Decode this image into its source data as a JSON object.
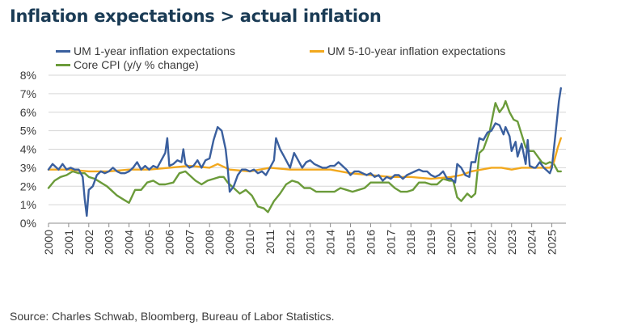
{
  "chart_data": {
    "type": "line",
    "title": "Inflation expectations > actual inflation",
    "xlabel": "",
    "ylabel": "",
    "xlim": [
      2000,
      2025.7
    ],
    "ylim": [
      0,
      8
    ],
    "y_ticks": [
      "0%",
      "1%",
      "2%",
      "3%",
      "4%",
      "5%",
      "6%",
      "7%",
      "8%"
    ],
    "x_ticks": [
      "2000",
      "2001",
      "2002",
      "2003",
      "2004",
      "2005",
      "2006",
      "2007",
      "2008",
      "2009",
      "2010",
      "2011",
      "2012",
      "2013",
      "2014",
      "2015",
      "2016",
      "2017",
      "2018",
      "2019",
      "2020",
      "2021",
      "2022",
      "2023",
      "2024",
      "2025"
    ],
    "grid": true,
    "legend_position": "top",
    "series": [
      {
        "name": "UM 1-year inflation expectations",
        "color": "#3a5f9e",
        "points": [
          [
            2000.0,
            2.9
          ],
          [
            2000.2,
            3.2
          ],
          [
            2000.5,
            2.9
          ],
          [
            2000.7,
            3.2
          ],
          [
            2000.9,
            2.9
          ],
          [
            2001.1,
            3.0
          ],
          [
            2001.3,
            2.9
          ],
          [
            2001.5,
            2.9
          ],
          [
            2001.7,
            2.5
          ],
          [
            2001.8,
            1.3
          ],
          [
            2001.9,
            0.4
          ],
          [
            2002.0,
            1.8
          ],
          [
            2002.2,
            2.0
          ],
          [
            2002.4,
            2.6
          ],
          [
            2002.6,
            2.8
          ],
          [
            2002.8,
            2.7
          ],
          [
            2003.0,
            2.8
          ],
          [
            2003.2,
            3.0
          ],
          [
            2003.4,
            2.8
          ],
          [
            2003.6,
            2.7
          ],
          [
            2003.8,
            2.7
          ],
          [
            2004.0,
            2.8
          ],
          [
            2004.2,
            3.0
          ],
          [
            2004.4,
            3.3
          ],
          [
            2004.6,
            2.9
          ],
          [
            2004.8,
            3.1
          ],
          [
            2005.0,
            2.9
          ],
          [
            2005.2,
            3.1
          ],
          [
            2005.4,
            3.0
          ],
          [
            2005.6,
            3.4
          ],
          [
            2005.8,
            3.8
          ],
          [
            2005.9,
            4.6
          ],
          [
            2006.0,
            3.1
          ],
          [
            2006.2,
            3.2
          ],
          [
            2006.4,
            3.4
          ],
          [
            2006.6,
            3.3
          ],
          [
            2006.7,
            4.0
          ],
          [
            2006.8,
            3.2
          ],
          [
            2007.0,
            3.0
          ],
          [
            2007.2,
            3.1
          ],
          [
            2007.4,
            3.4
          ],
          [
            2007.6,
            3.0
          ],
          [
            2007.8,
            3.4
          ],
          [
            2008.0,
            3.5
          ],
          [
            2008.2,
            4.5
          ],
          [
            2008.4,
            5.2
          ],
          [
            2008.6,
            5.0
          ],
          [
            2008.8,
            4.0
          ],
          [
            2008.9,
            3.0
          ],
          [
            2009.0,
            1.7
          ],
          [
            2009.2,
            2.0
          ],
          [
            2009.4,
            2.6
          ],
          [
            2009.6,
            2.9
          ],
          [
            2009.8,
            2.9
          ],
          [
            2010.0,
            2.8
          ],
          [
            2010.2,
            2.9
          ],
          [
            2010.4,
            2.7
          ],
          [
            2010.6,
            2.8
          ],
          [
            2010.8,
            2.6
          ],
          [
            2011.0,
            3.0
          ],
          [
            2011.2,
            3.4
          ],
          [
            2011.3,
            4.6
          ],
          [
            2011.5,
            4.0
          ],
          [
            2011.7,
            3.6
          ],
          [
            2011.9,
            3.2
          ],
          [
            2012.0,
            3.0
          ],
          [
            2012.2,
            3.8
          ],
          [
            2012.4,
            3.4
          ],
          [
            2012.6,
            3.0
          ],
          [
            2012.8,
            3.3
          ],
          [
            2013.0,
            3.4
          ],
          [
            2013.2,
            3.2
          ],
          [
            2013.4,
            3.1
          ],
          [
            2013.6,
            3.0
          ],
          [
            2013.8,
            3.0
          ],
          [
            2014.0,
            3.1
          ],
          [
            2014.2,
            3.1
          ],
          [
            2014.4,
            3.3
          ],
          [
            2014.6,
            3.1
          ],
          [
            2014.8,
            2.9
          ],
          [
            2015.0,
            2.6
          ],
          [
            2015.2,
            2.8
          ],
          [
            2015.4,
            2.8
          ],
          [
            2015.6,
            2.7
          ],
          [
            2015.8,
            2.6
          ],
          [
            2016.0,
            2.7
          ],
          [
            2016.2,
            2.5
          ],
          [
            2016.4,
            2.6
          ],
          [
            2016.6,
            2.3
          ],
          [
            2016.8,
            2.5
          ],
          [
            2017.0,
            2.4
          ],
          [
            2017.2,
            2.6
          ],
          [
            2017.4,
            2.6
          ],
          [
            2017.6,
            2.4
          ],
          [
            2017.8,
            2.6
          ],
          [
            2018.0,
            2.7
          ],
          [
            2018.2,
            2.8
          ],
          [
            2018.4,
            2.9
          ],
          [
            2018.6,
            2.8
          ],
          [
            2018.8,
            2.8
          ],
          [
            2019.0,
            2.6
          ],
          [
            2019.2,
            2.5
          ],
          [
            2019.4,
            2.6
          ],
          [
            2019.6,
            2.8
          ],
          [
            2019.8,
            2.4
          ],
          [
            2020.0,
            2.4
          ],
          [
            2020.2,
            2.2
          ],
          [
            2020.3,
            3.2
          ],
          [
            2020.5,
            3.0
          ],
          [
            2020.7,
            2.6
          ],
          [
            2020.9,
            2.5
          ],
          [
            2021.0,
            3.3
          ],
          [
            2021.2,
            3.3
          ],
          [
            2021.4,
            4.6
          ],
          [
            2021.6,
            4.5
          ],
          [
            2021.8,
            4.9
          ],
          [
            2022.0,
            5.0
          ],
          [
            2022.2,
            5.4
          ],
          [
            2022.4,
            5.3
          ],
          [
            2022.6,
            4.8
          ],
          [
            2022.7,
            5.2
          ],
          [
            2022.9,
            4.7
          ],
          [
            2023.0,
            3.9
          ],
          [
            2023.2,
            4.4
          ],
          [
            2023.3,
            3.6
          ],
          [
            2023.5,
            4.3
          ],
          [
            2023.7,
            3.2
          ],
          [
            2023.8,
            4.5
          ],
          [
            2023.9,
            3.1
          ],
          [
            2024.1,
            3.0
          ],
          [
            2024.2,
            3.0
          ],
          [
            2024.4,
            3.3
          ],
          [
            2024.6,
            3.0
          ],
          [
            2024.8,
            2.8
          ],
          [
            2024.9,
            2.7
          ],
          [
            2025.0,
            3.0
          ],
          [
            2025.2,
            5.0
          ],
          [
            2025.35,
            6.6
          ],
          [
            2025.45,
            7.3
          ]
        ]
      },
      {
        "name": "UM 5-10-year inflation expectations",
        "color": "#f2a81d",
        "points": [
          [
            2000.0,
            2.9
          ],
          [
            2001.0,
            2.9
          ],
          [
            2002.0,
            2.8
          ],
          [
            2003.0,
            2.8
          ],
          [
            2004.0,
            2.9
          ],
          [
            2005.0,
            2.9
          ],
          [
            2006.0,
            3.0
          ],
          [
            2007.0,
            3.1
          ],
          [
            2008.0,
            3.0
          ],
          [
            2008.4,
            3.2
          ],
          [
            2009.0,
            2.9
          ],
          [
            2010.0,
            2.8
          ],
          [
            2011.0,
            3.0
          ],
          [
            2012.0,
            2.9
          ],
          [
            2013.0,
            2.9
          ],
          [
            2014.0,
            2.9
          ],
          [
            2015.0,
            2.7
          ],
          [
            2016.0,
            2.6
          ],
          [
            2017.0,
            2.5
          ],
          [
            2018.0,
            2.5
          ],
          [
            2019.0,
            2.4
          ],
          [
            2020.0,
            2.5
          ],
          [
            2020.5,
            2.6
          ],
          [
            2021.0,
            2.8
          ],
          [
            2021.5,
            2.9
          ],
          [
            2022.0,
            3.0
          ],
          [
            2022.5,
            3.0
          ],
          [
            2023.0,
            2.9
          ],
          [
            2023.5,
            3.0
          ],
          [
            2024.0,
            3.0
          ],
          [
            2024.5,
            3.0
          ],
          [
            2024.9,
            3.0
          ],
          [
            2025.1,
            3.3
          ],
          [
            2025.3,
            4.1
          ],
          [
            2025.45,
            4.6
          ]
        ]
      },
      {
        "name": "Core CPI (y/y % change)",
        "color": "#6b9b3a",
        "points": [
          [
            2000.0,
            1.9
          ],
          [
            2000.3,
            2.3
          ],
          [
            2000.6,
            2.5
          ],
          [
            2000.9,
            2.6
          ],
          [
            2001.2,
            2.8
          ],
          [
            2001.5,
            2.7
          ],
          [
            2001.8,
            2.7
          ],
          [
            2002.0,
            2.5
          ],
          [
            2002.3,
            2.4
          ],
          [
            2002.6,
            2.2
          ],
          [
            2002.9,
            2.0
          ],
          [
            2003.1,
            1.8
          ],
          [
            2003.4,
            1.5
          ],
          [
            2003.7,
            1.3
          ],
          [
            2004.0,
            1.1
          ],
          [
            2004.3,
            1.8
          ],
          [
            2004.6,
            1.8
          ],
          [
            2004.9,
            2.2
          ],
          [
            2005.2,
            2.3
          ],
          [
            2005.5,
            2.1
          ],
          [
            2005.8,
            2.1
          ],
          [
            2006.2,
            2.2
          ],
          [
            2006.5,
            2.7
          ],
          [
            2006.8,
            2.8
          ],
          [
            2007.0,
            2.6
          ],
          [
            2007.3,
            2.3
          ],
          [
            2007.6,
            2.1
          ],
          [
            2007.9,
            2.3
          ],
          [
            2008.2,
            2.4
          ],
          [
            2008.5,
            2.5
          ],
          [
            2008.7,
            2.5
          ],
          [
            2008.9,
            2.2
          ],
          [
            2009.2,
            1.9
          ],
          [
            2009.5,
            1.6
          ],
          [
            2009.8,
            1.8
          ],
          [
            2010.1,
            1.5
          ],
          [
            2010.4,
            0.9
          ],
          [
            2010.7,
            0.8
          ],
          [
            2010.9,
            0.6
          ],
          [
            2011.2,
            1.2
          ],
          [
            2011.5,
            1.6
          ],
          [
            2011.8,
            2.1
          ],
          [
            2012.1,
            2.3
          ],
          [
            2012.4,
            2.2
          ],
          [
            2012.7,
            1.9
          ],
          [
            2013.0,
            1.9
          ],
          [
            2013.3,
            1.7
          ],
          [
            2013.6,
            1.7
          ],
          [
            2013.9,
            1.7
          ],
          [
            2014.2,
            1.7
          ],
          [
            2014.5,
            1.9
          ],
          [
            2014.8,
            1.8
          ],
          [
            2015.1,
            1.7
          ],
          [
            2015.4,
            1.8
          ],
          [
            2015.7,
            1.9
          ],
          [
            2016.0,
            2.2
          ],
          [
            2016.3,
            2.2
          ],
          [
            2016.6,
            2.2
          ],
          [
            2016.9,
            2.2
          ],
          [
            2017.2,
            1.9
          ],
          [
            2017.5,
            1.7
          ],
          [
            2017.8,
            1.7
          ],
          [
            2018.1,
            1.8
          ],
          [
            2018.4,
            2.2
          ],
          [
            2018.7,
            2.2
          ],
          [
            2019.0,
            2.1
          ],
          [
            2019.3,
            2.1
          ],
          [
            2019.6,
            2.4
          ],
          [
            2019.9,
            2.3
          ],
          [
            2020.1,
            2.3
          ],
          [
            2020.3,
            1.4
          ],
          [
            2020.5,
            1.2
          ],
          [
            2020.8,
            1.6
          ],
          [
            2021.0,
            1.4
          ],
          [
            2021.2,
            1.6
          ],
          [
            2021.4,
            3.8
          ],
          [
            2021.6,
            4.0
          ],
          [
            2021.9,
            4.9
          ],
          [
            2022.1,
            6.0
          ],
          [
            2022.2,
            6.5
          ],
          [
            2022.4,
            6.0
          ],
          [
            2022.6,
            6.3
          ],
          [
            2022.7,
            6.6
          ],
          [
            2022.9,
            6.0
          ],
          [
            2023.1,
            5.6
          ],
          [
            2023.3,
            5.5
          ],
          [
            2023.5,
            4.8
          ],
          [
            2023.7,
            4.1
          ],
          [
            2023.9,
            3.9
          ],
          [
            2024.1,
            3.9
          ],
          [
            2024.3,
            3.6
          ],
          [
            2024.5,
            3.3
          ],
          [
            2024.7,
            3.2
          ],
          [
            2024.9,
            3.3
          ],
          [
            2025.1,
            3.2
          ],
          [
            2025.3,
            2.8
          ],
          [
            2025.45,
            2.8
          ]
        ]
      }
    ]
  },
  "source": "Source: Charles Schwab, Bloomberg, Bureau of Labor Statistics."
}
